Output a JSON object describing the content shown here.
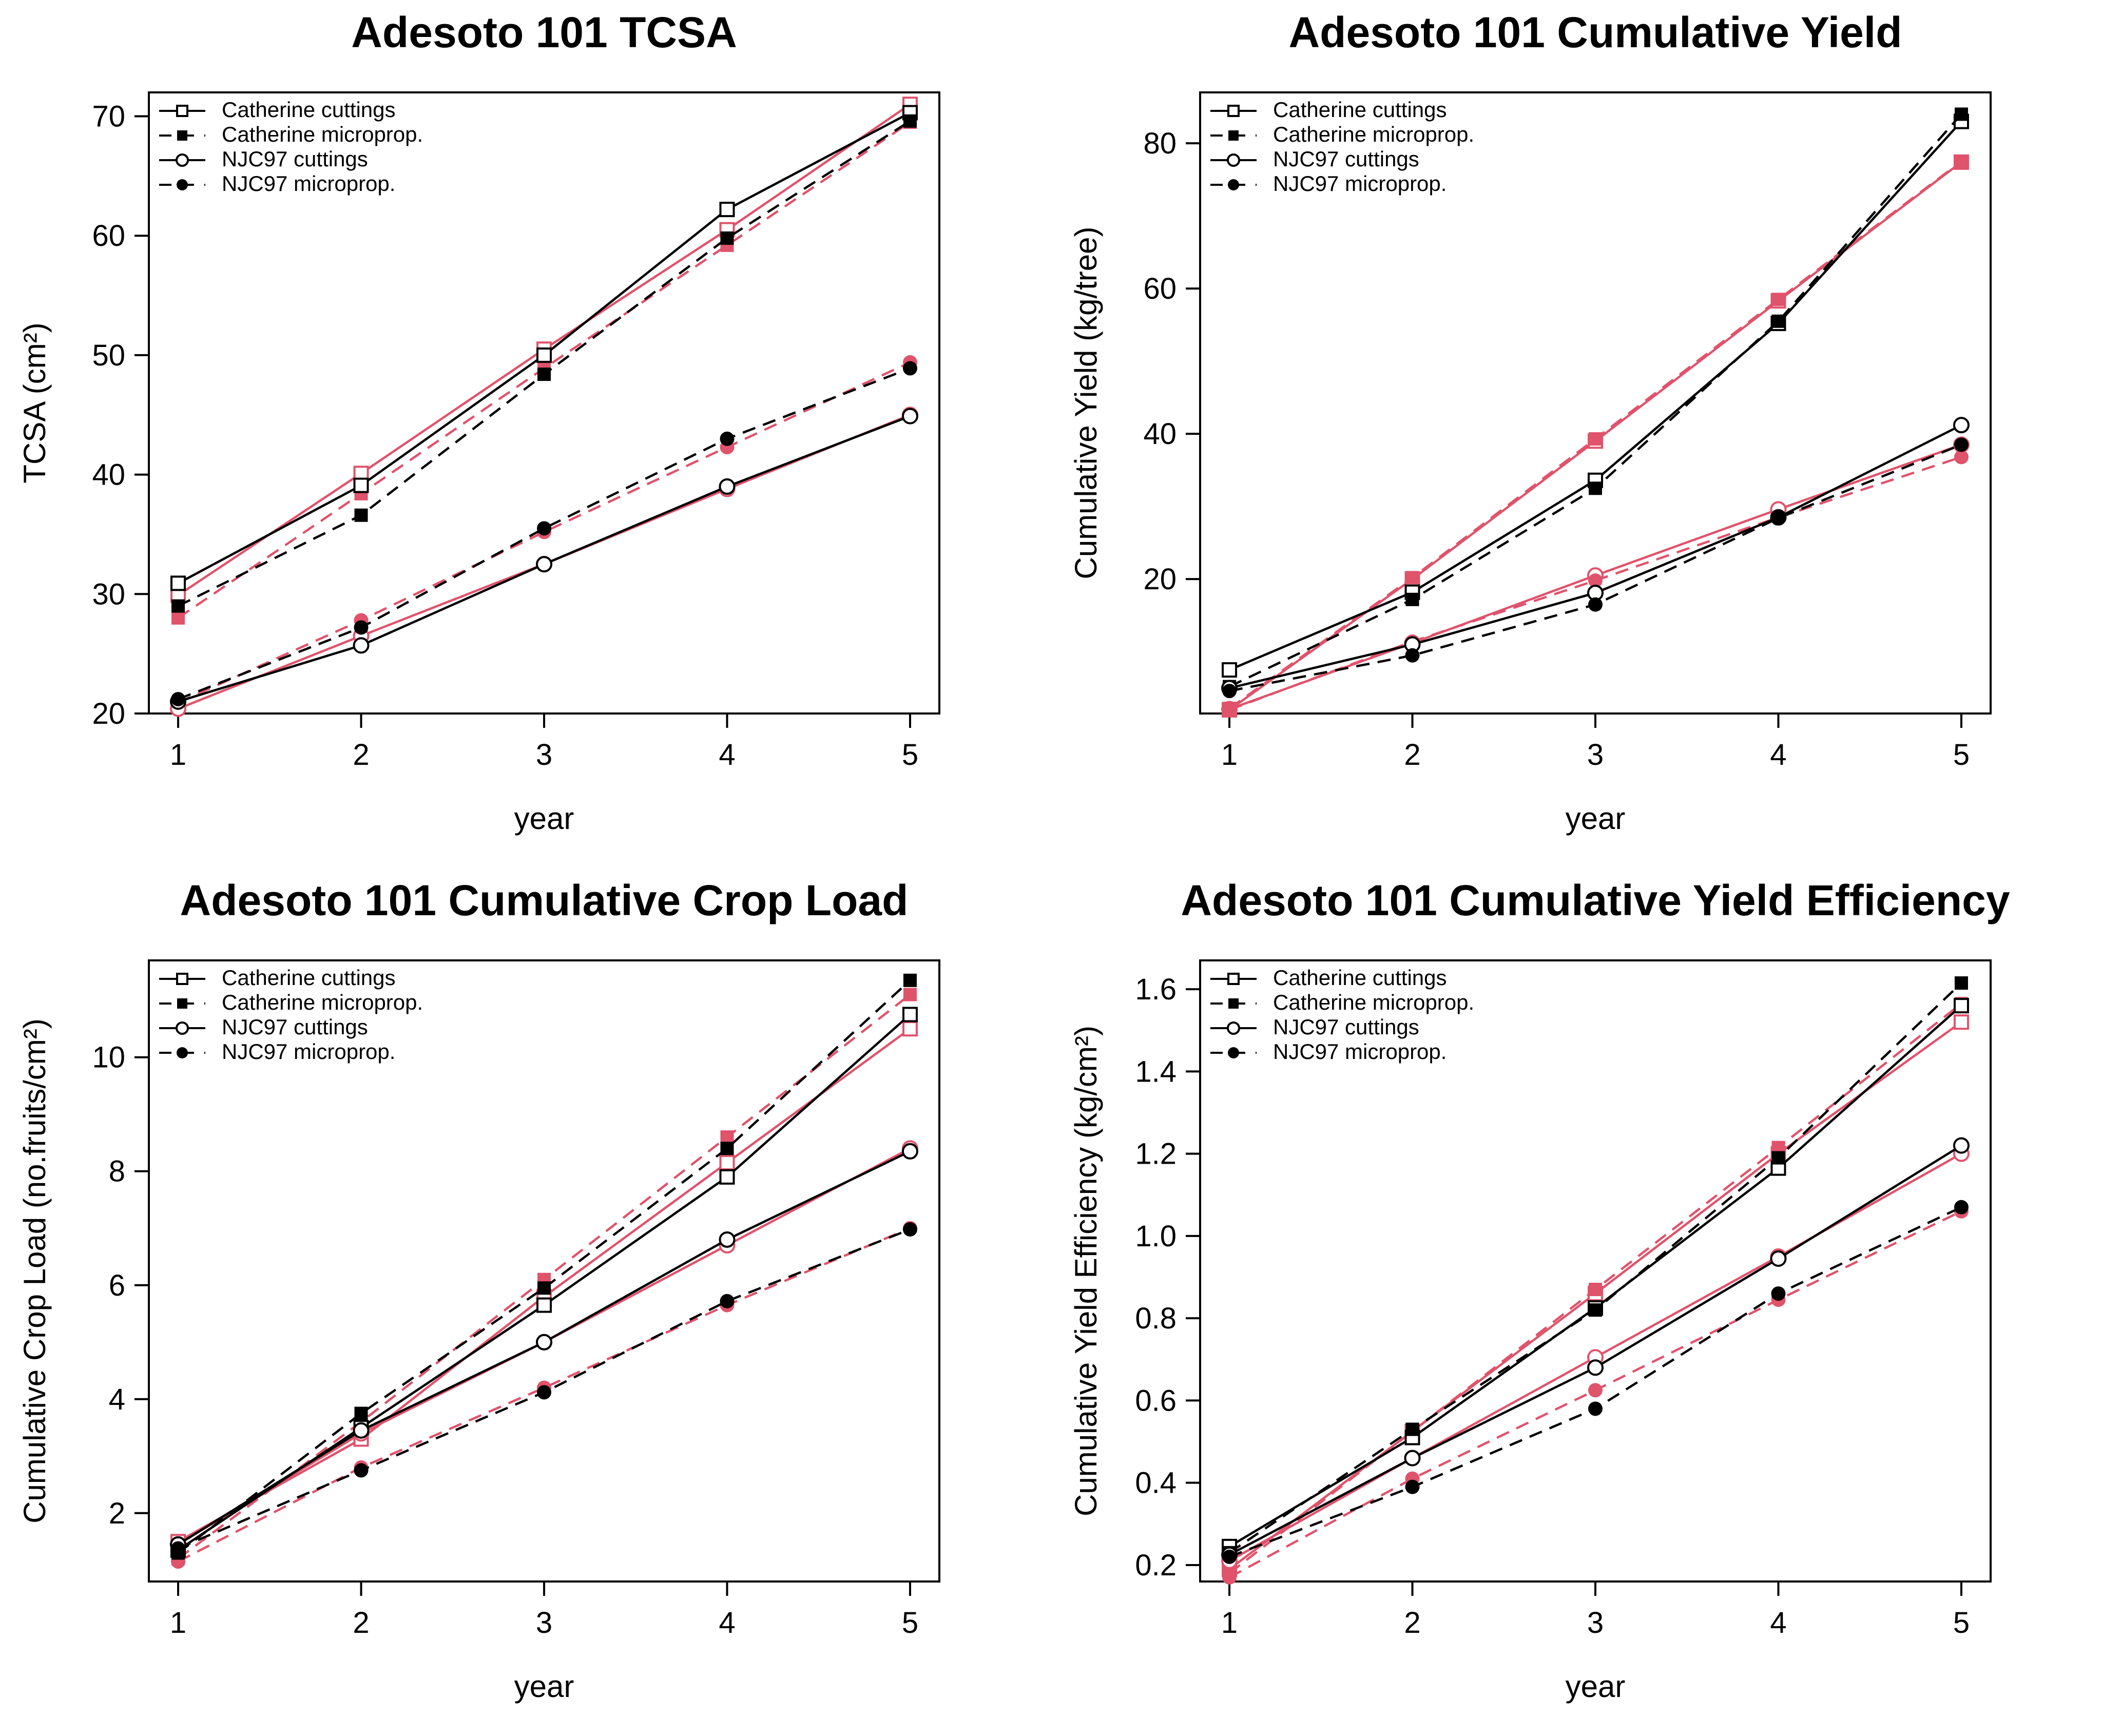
{
  "chart_data": [
    {
      "type": "line",
      "title": "Adesoto 101 TCSA",
      "xlabel": "year",
      "ylabel": "TCSA (cm²)",
      "x": [
        1,
        2,
        3,
        4,
        5
      ],
      "xlim": [
        1,
        5
      ],
      "ylim": [
        20,
        72
      ],
      "yticks": [
        20,
        30,
        40,
        50,
        60,
        70
      ],
      "legend": [
        "Catherine cuttings",
        "Catherine microprop.",
        "NJC97 cuttings",
        "NJC97 microprop."
      ],
      "legend_position": "top-left",
      "grid": false,
      "series": [
        {
          "name": "Catherine cuttings",
          "color": "#000000",
          "values": [
            30.9,
            39.1,
            50.0,
            62.2,
            70.3
          ]
        },
        {
          "name": "Catherine microprop.",
          "color": "#000000",
          "values": [
            29.0,
            36.6,
            48.4,
            59.8,
            69.6
          ]
        },
        {
          "name": "NJC97 cuttings",
          "color": "#000000",
          "values": [
            21.0,
            25.7,
            32.5,
            39.0,
            44.9
          ]
        },
        {
          "name": "NJC97 microprop.",
          "color": "#000000",
          "values": [
            21.2,
            27.2,
            35.5,
            43.0,
            48.9
          ]
        },
        {
          "color": "#DF536B",
          "values": [
            29.9,
            40.1,
            50.5,
            60.5,
            71.0
          ]
        },
        {
          "color": "#DF536B",
          "values": [
            28.0,
            38.4,
            48.9,
            59.2,
            69.5
          ]
        },
        {
          "color": "#DF536B",
          "values": [
            20.4,
            26.5,
            32.5,
            38.8,
            45.0
          ]
        },
        {
          "color": "#DF536B",
          "values": [
            20.9,
            27.8,
            35.2,
            42.3,
            49.4
          ]
        }
      ]
    },
    {
      "type": "line",
      "title": "Adesoto 101 Cumulative Yield",
      "xlabel": "year",
      "ylabel": "Cumulative Yield (kg/tree)",
      "x": [
        1,
        2,
        3,
        4,
        5
      ],
      "xlim": [
        1,
        5
      ],
      "ylim": [
        1.5,
        87
      ],
      "yticks": [
        20,
        40,
        60,
        80
      ],
      "legend": [
        "Catherine cuttings",
        "Catherine microprop.",
        "NJC97 cuttings",
        "NJC97 microprop."
      ],
      "legend_position": "top-left",
      "grid": false,
      "series": [
        {
          "name": "Catherine cuttings",
          "color": "#000000",
          "values": [
            7.5,
            18.2,
            33.6,
            55.2,
            83.0
          ]
        },
        {
          "name": "Catherine microprop.",
          "color": "#000000",
          "values": [
            5.2,
            17.2,
            32.5,
            55.5,
            84.0
          ]
        },
        {
          "name": "NJC97 cuttings",
          "color": "#000000",
          "values": [
            5.0,
            11.0,
            18.1,
            28.5,
            41.2
          ]
        },
        {
          "name": "NJC97 microprop.",
          "color": "#000000",
          "values": [
            4.6,
            9.5,
            16.5,
            28.4,
            38.5
          ]
        },
        {
          "color": "#DF536B",
          "values": [
            2.0,
            20.0,
            39.0,
            58.3,
            77.4
          ]
        },
        {
          "color": "#DF536B",
          "values": [
            2.2,
            20.2,
            39.3,
            58.5,
            77.5
          ]
        },
        {
          "color": "#DF536B",
          "values": [
            2.1,
            11.2,
            20.5,
            29.6,
            38.5
          ]
        },
        {
          "color": "#DF536B",
          "values": [
            2.0,
            11.4,
            19.8,
            28.5,
            36.8
          ]
        }
      ]
    },
    {
      "type": "line",
      "title": "Adesoto 101 Cumulative Crop Load",
      "xlabel": "year",
      "ylabel": "Cumulative Crop Load (no.fruits/cm²)",
      "x": [
        1,
        2,
        3,
        4,
        5
      ],
      "xlim": [
        1,
        5
      ],
      "ylim": [
        0.8,
        11.7
      ],
      "yticks": [
        2,
        4,
        6,
        8,
        10
      ],
      "legend": [
        "Catherine cuttings",
        "Catherine microprop.",
        "NJC97 cuttings",
        "NJC97 microprop."
      ],
      "legend_position": "top-left",
      "grid": false,
      "series": [
        {
          "name": "Catherine cuttings",
          "color": "#000000",
          "values": [
            1.35,
            3.5,
            5.65,
            7.9,
            10.75
          ]
        },
        {
          "name": "Catherine microprop.",
          "color": "#000000",
          "values": [
            1.3,
            3.75,
            5.95,
            8.4,
            11.35
          ]
        },
        {
          "name": "NJC97 cuttings",
          "color": "#000000",
          "values": [
            1.45,
            3.45,
            5.0,
            6.8,
            8.35
          ]
        },
        {
          "name": "NJC97 microprop.",
          "color": "#000000",
          "values": [
            1.38,
            2.75,
            4.12,
            5.72,
            6.98
          ]
        },
        {
          "color": "#DF536B",
          "values": [
            1.5,
            3.3,
            5.8,
            8.15,
            10.5
          ]
        },
        {
          "color": "#DF536B",
          "values": [
            1.2,
            3.6,
            6.1,
            8.6,
            11.1
          ]
        },
        {
          "color": "#DF536B",
          "values": [
            1.45,
            3.4,
            5.0,
            6.7,
            8.4
          ]
        },
        {
          "color": "#DF536B",
          "values": [
            1.15,
            2.8,
            4.2,
            5.65,
            7.0
          ]
        }
      ]
    },
    {
      "type": "line",
      "title": "Adesoto 101 Cumulative Yield Efficiency",
      "xlabel": "year",
      "ylabel": "Cumulative Yield Efficiency (kg/cm²)",
      "x": [
        1,
        2,
        3,
        4,
        5
      ],
      "xlim": [
        1,
        5
      ],
      "ylim": [
        0.16,
        1.67
      ],
      "yticks": [
        0.2,
        0.4,
        0.6,
        0.8,
        1.0,
        1.2,
        1.4,
        1.6
      ],
      "ytick_labels": [
        "0.2",
        "0.4",
        "0.6",
        "0.8",
        "1.0",
        "1.2",
        "1.4",
        "1.6"
      ],
      "legend": [
        "Catherine cuttings",
        "Catherine microprop.",
        "NJC97 cuttings",
        "NJC97 microprop."
      ],
      "legend_position": "top-left",
      "grid": false,
      "series": [
        {
          "name": "Catherine cuttings",
          "color": "#000000",
          "values": [
            0.245,
            0.51,
            0.825,
            1.165,
            1.56
          ]
        },
        {
          "name": "Catherine microprop.",
          "color": "#000000",
          "values": [
            0.23,
            0.53,
            0.82,
            1.19,
            1.615
          ]
        },
        {
          "name": "NJC97 cuttings",
          "color": "#000000",
          "values": [
            0.225,
            0.46,
            0.68,
            0.945,
            1.22
          ]
        },
        {
          "name": "NJC97 microprop.",
          "color": "#000000",
          "values": [
            0.22,
            0.39,
            0.58,
            0.86,
            1.07
          ]
        },
        {
          "color": "#DF536B",
          "values": [
            0.19,
            0.525,
            0.86,
            1.2,
            1.52
          ]
        },
        {
          "color": "#DF536B",
          "values": [
            0.18,
            0.525,
            0.87,
            1.215,
            1.565
          ]
        },
        {
          "color": "#DF536B",
          "values": [
            0.21,
            0.46,
            0.705,
            0.95,
            1.2
          ]
        },
        {
          "color": "#DF536B",
          "values": [
            0.17,
            0.41,
            0.625,
            0.845,
            1.06
          ]
        }
      ]
    }
  ]
}
